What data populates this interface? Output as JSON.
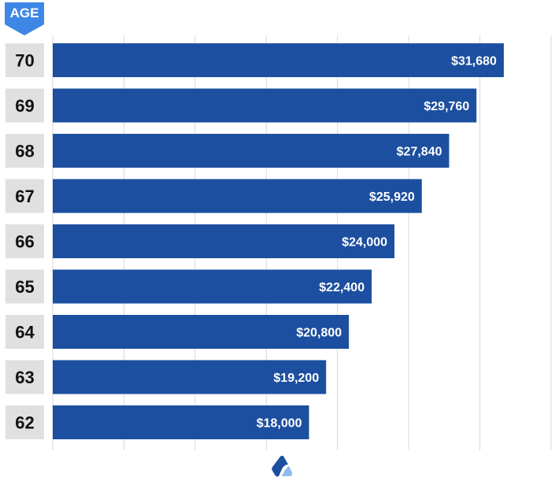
{
  "header": {
    "age_label": "AGE"
  },
  "colors": {
    "bar": "#1c4fa0",
    "label_bg": "#e0e0e0",
    "tag": "#3f87e6",
    "grid": "#d9d9d9",
    "logo_dark": "#1c4fa0",
    "logo_light": "#8fb9ef"
  },
  "logo": {
    "icon": "brand-logo-icon"
  },
  "chart_data": {
    "type": "bar",
    "orientation": "horizontal",
    "categories": [
      "70",
      "69",
      "68",
      "67",
      "66",
      "65",
      "64",
      "63",
      "62"
    ],
    "values": [
      31680,
      29760,
      27840,
      25920,
      24000,
      22400,
      20800,
      19200,
      18000
    ],
    "value_labels": [
      "$31,680",
      "$29,760",
      "$27,840",
      "$25,920",
      "$24,000",
      "$22,400",
      "$20,800",
      "$19,200",
      "$18,000"
    ],
    "title": "",
    "xlabel": "",
    "ylabel": "AGE",
    "xlim": [
      0,
      35000
    ],
    "grid": "vertical",
    "legend": "none"
  }
}
